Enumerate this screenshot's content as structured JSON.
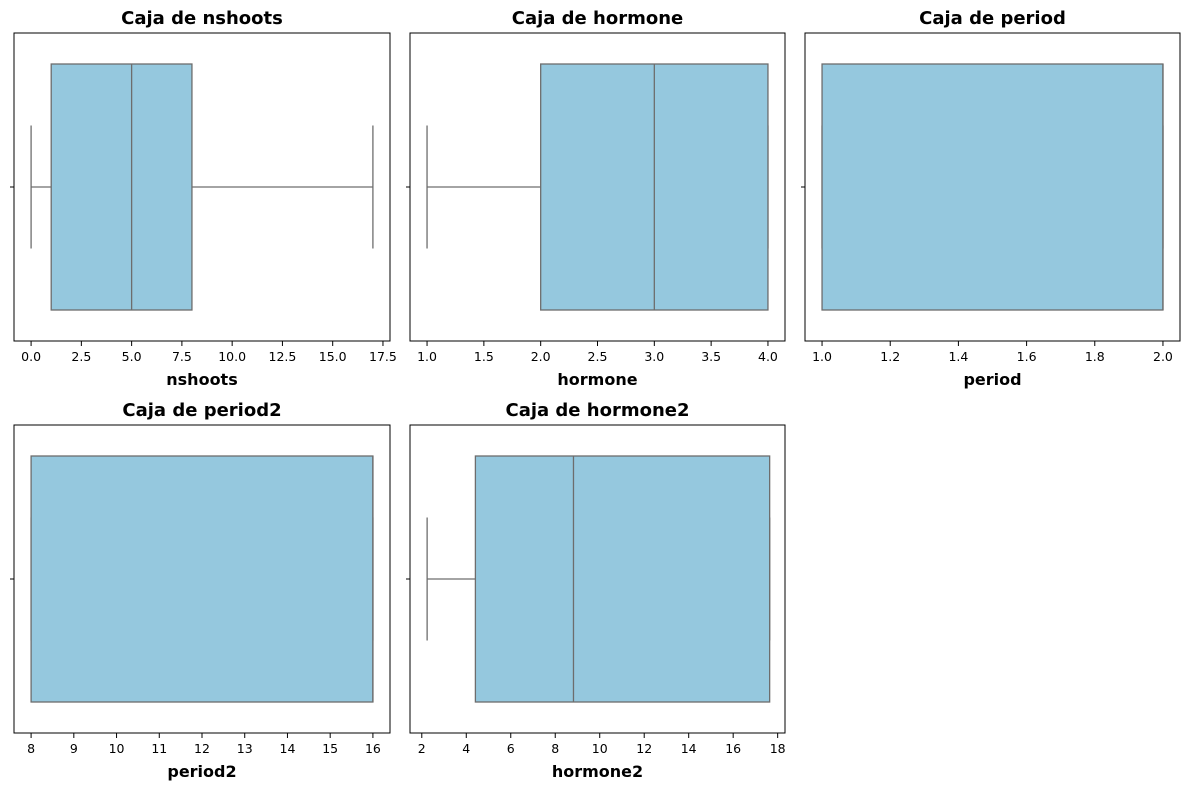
{
  "figure": {
    "box_fill": "#95c8de",
    "line_color": "#6d6d6d"
  },
  "chart_data": [
    {
      "type": "box",
      "title": "Caja de nshoots",
      "xlabel": "nshoots",
      "ylabel": "",
      "xlim": [
        -0.85,
        17.85
      ],
      "xticks": [
        0.0,
        2.5,
        5.0,
        7.5,
        10.0,
        12.5,
        15.0,
        17.5
      ],
      "xtick_labels": [
        "0.0",
        "2.5",
        "5.0",
        "7.5",
        "10.0",
        "12.5",
        "15.0",
        "17.5"
      ],
      "box": {
        "whisker_low": 0,
        "q1": 1,
        "median": 5,
        "q3": 8,
        "whisker_high": 17
      }
    },
    {
      "type": "box",
      "title": "Caja de hormone",
      "xlabel": "hormone",
      "ylabel": "",
      "xlim": [
        0.85,
        4.15
      ],
      "xticks": [
        1.0,
        1.5,
        2.0,
        2.5,
        3.0,
        3.5,
        4.0
      ],
      "xtick_labels": [
        "1.0",
        "1.5",
        "2.0",
        "2.5",
        "3.0",
        "3.5",
        "4.0"
      ],
      "box": {
        "whisker_low": 1,
        "q1": 2,
        "median": 3,
        "q3": 4,
        "whisker_high": 4
      }
    },
    {
      "type": "box",
      "title": "Caja de period",
      "xlabel": "period",
      "ylabel": "",
      "xlim": [
        0.95,
        2.05
      ],
      "xticks": [
        1.0,
        1.2,
        1.4,
        1.6,
        1.8,
        2.0
      ],
      "xtick_labels": [
        "1.0",
        "1.2",
        "1.4",
        "1.6",
        "1.8",
        "2.0"
      ],
      "box": {
        "whisker_low": 1,
        "q1": 1,
        "median": 2,
        "q3": 2,
        "whisker_high": 2
      }
    },
    {
      "type": "box",
      "title": "Caja de period2",
      "xlabel": "period2",
      "ylabel": "",
      "xlim": [
        7.6,
        16.4
      ],
      "xticks": [
        8,
        9,
        10,
        11,
        12,
        13,
        14,
        15,
        16
      ],
      "xtick_labels": [
        "8",
        "9",
        "10",
        "11",
        "12",
        "13",
        "14",
        "15",
        "16"
      ],
      "box": {
        "whisker_low": 8,
        "q1": 8,
        "median": 16,
        "q3": 16,
        "whisker_high": 16
      }
    },
    {
      "type": "box",
      "title": "Caja de hormone2",
      "xlabel": "hormone2",
      "ylabel": "",
      "xlim": [
        1.47,
        18.33
      ],
      "xticks": [
        2,
        4,
        6,
        8,
        10,
        12,
        14,
        16,
        18
      ],
      "xtick_labels": [
        "2",
        "4",
        "6",
        "8",
        "10",
        "12",
        "14",
        "16",
        "18"
      ],
      "box": {
        "whisker_low": 2.24,
        "q1": 4.41,
        "median": 8.82,
        "q3": 17.64,
        "whisker_high": 17.64
      }
    }
  ]
}
